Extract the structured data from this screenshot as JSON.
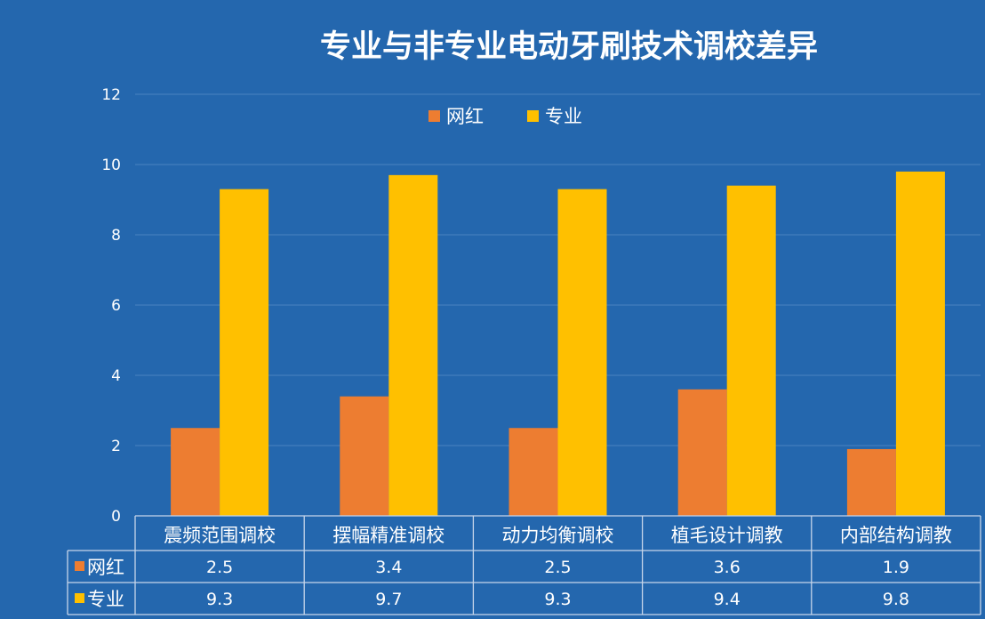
{
  "chart_data": {
    "type": "bar",
    "title": "专业与非专业电动牙刷技术调校差异",
    "categories": [
      "震频范围调校",
      "摆幅精准调校",
      "动力均衡调校",
      "植毛设计调教",
      "内部结构调教"
    ],
    "series": [
      {
        "name": "网红",
        "values": [
          2.5,
          3.4,
          2.5,
          3.6,
          1.9
        ],
        "display": [
          "2.5",
          "3.4",
          "2.5",
          "3.6",
          "1.9"
        ],
        "color": "#ed7d31"
      },
      {
        "name": "专业",
        "values": [
          9.3,
          9.7,
          9.3,
          9.4,
          9.8
        ],
        "display": [
          "9.3",
          "9.7",
          "9.3",
          "9.4",
          "9.8"
        ],
        "color": "#ffc000"
      }
    ],
    "ylim": [
      0,
      12
    ],
    "yticks": [
      "0",
      "2",
      "4",
      "6",
      "8",
      "10",
      "12"
    ],
    "grid": true,
    "legend_position": "top",
    "data_table": true
  },
  "colors": {
    "background": "#2467ae",
    "gridline": "#4a83c0",
    "table_border": "#c7d6ea"
  }
}
